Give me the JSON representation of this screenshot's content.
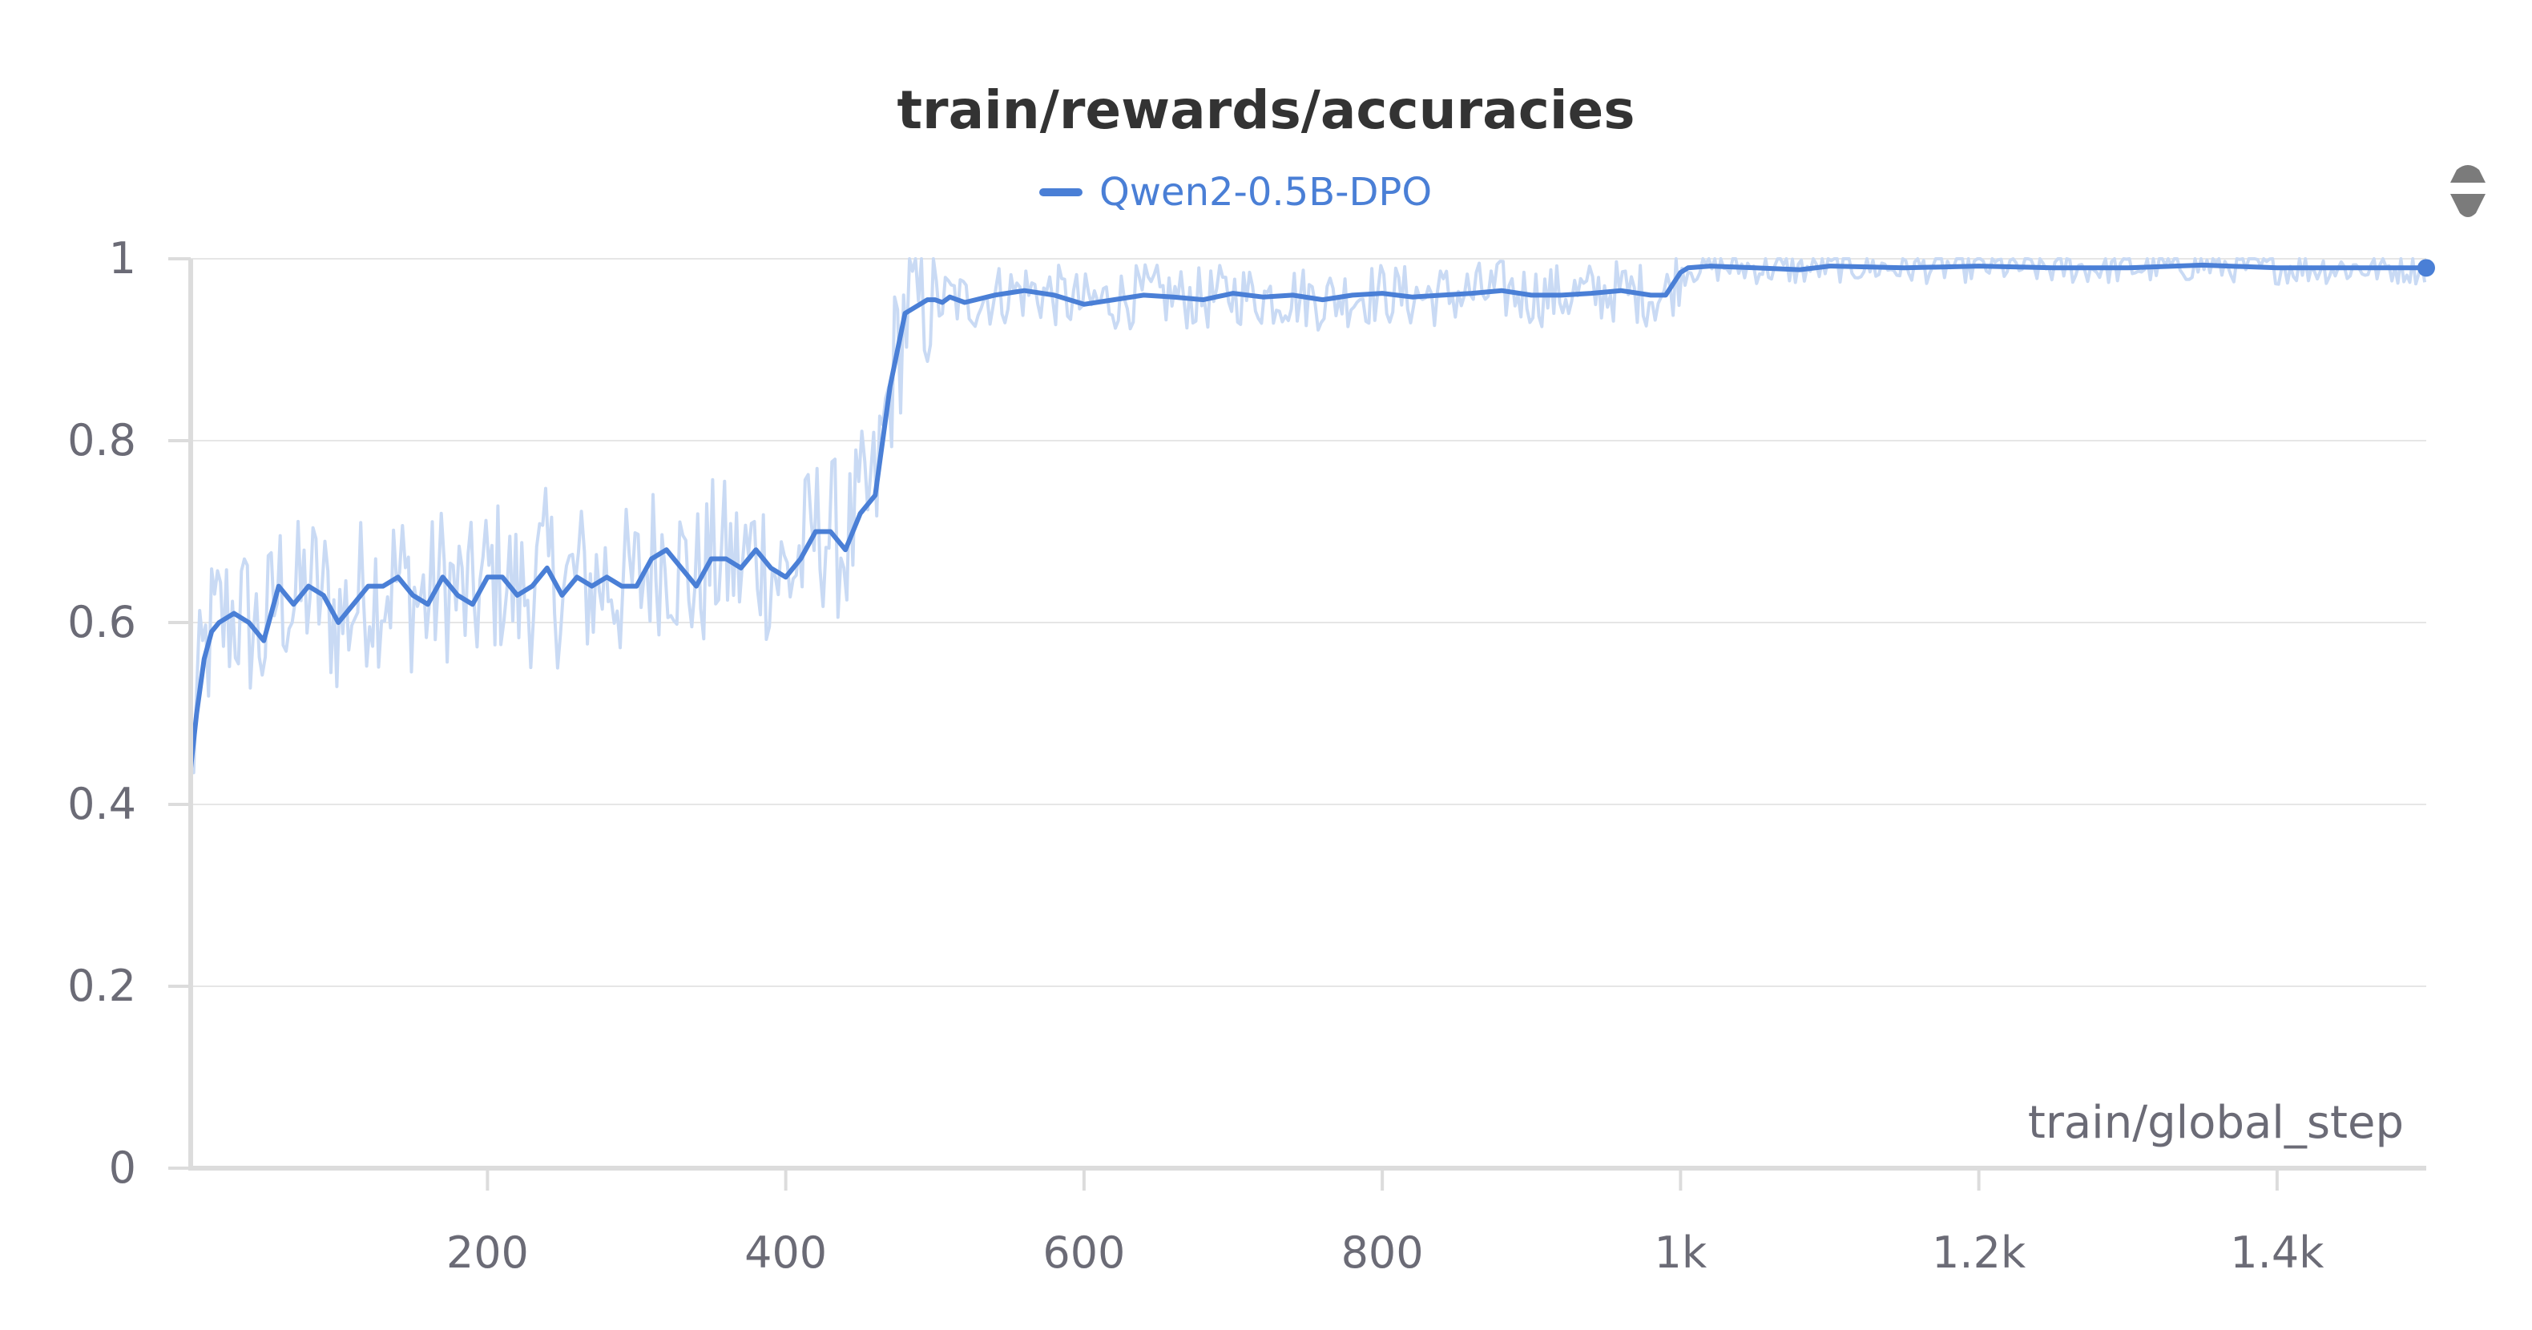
{
  "chart_data": {
    "type": "line",
    "title": "train/rewards/accuracies",
    "xlabel": "train/global_step",
    "ylabel": "",
    "xlim": [
      1,
      1500
    ],
    "ylim": [
      0,
      1
    ],
    "x_ticks": [
      200,
      400,
      600,
      800,
      1000,
      1200,
      1400
    ],
    "x_tick_labels": [
      "200",
      "400",
      "600",
      "800",
      "1k",
      "1.2k",
      "1.4k"
    ],
    "y_ticks": [
      0,
      0.2,
      0.4,
      0.6,
      0.8,
      1
    ],
    "y_tick_labels": [
      "0",
      "0.2",
      "0.4",
      "0.6",
      "0.8",
      "1"
    ],
    "grid": true,
    "legend_position": "top-center",
    "series": [
      {
        "name": "Qwen2-0.5B-DPO",
        "color": "#4a7fd6",
        "raw_color": "#c9daf4",
        "smoothed": {
          "x": [
            1,
            5,
            10,
            15,
            20,
            30,
            40,
            50,
            60,
            70,
            80,
            90,
            100,
            110,
            120,
            130,
            140,
            150,
            160,
            170,
            180,
            190,
            200,
            210,
            220,
            230,
            240,
            250,
            260,
            270,
            280,
            290,
            300,
            310,
            320,
            330,
            340,
            350,
            360,
            370,
            380,
            390,
            400,
            410,
            420,
            430,
            440,
            450,
            460,
            470,
            480,
            490,
            495,
            500,
            505,
            510,
            515,
            520,
            540,
            560,
            580,
            600,
            620,
            640,
            660,
            680,
            700,
            720,
            740,
            760,
            780,
            800,
            820,
            840,
            860,
            880,
            900,
            920,
            940,
            960,
            980,
            990,
            1000,
            1005,
            1020,
            1050,
            1080,
            1100,
            1150,
            1200,
            1250,
            1300,
            1350,
            1400,
            1450,
            1500
          ],
          "y": [
            0.44,
            0.5,
            0.56,
            0.59,
            0.6,
            0.61,
            0.6,
            0.58,
            0.64,
            0.62,
            0.64,
            0.63,
            0.6,
            0.62,
            0.64,
            0.64,
            0.65,
            0.63,
            0.62,
            0.65,
            0.63,
            0.62,
            0.65,
            0.65,
            0.63,
            0.64,
            0.66,
            0.63,
            0.65,
            0.64,
            0.65,
            0.64,
            0.64,
            0.67,
            0.68,
            0.66,
            0.64,
            0.67,
            0.67,
            0.66,
            0.68,
            0.66,
            0.65,
            0.67,
            0.7,
            0.7,
            0.68,
            0.72,
            0.74,
            0.86,
            0.94,
            0.95,
            0.955,
            0.955,
            0.952,
            0.958,
            0.955,
            0.952,
            0.96,
            0.965,
            0.96,
            0.95,
            0.955,
            0.96,
            0.958,
            0.955,
            0.962,
            0.958,
            0.96,
            0.955,
            0.96,
            0.962,
            0.958,
            0.96,
            0.962,
            0.965,
            0.96,
            0.96,
            0.962,
            0.965,
            0.96,
            0.96,
            0.985,
            0.99,
            0.992,
            0.99,
            0.988,
            0.992,
            0.99,
            0.992,
            0.99,
            0.99,
            0.993,
            0.99,
            0.99,
            0.99
          ]
        }
      }
    ]
  }
}
